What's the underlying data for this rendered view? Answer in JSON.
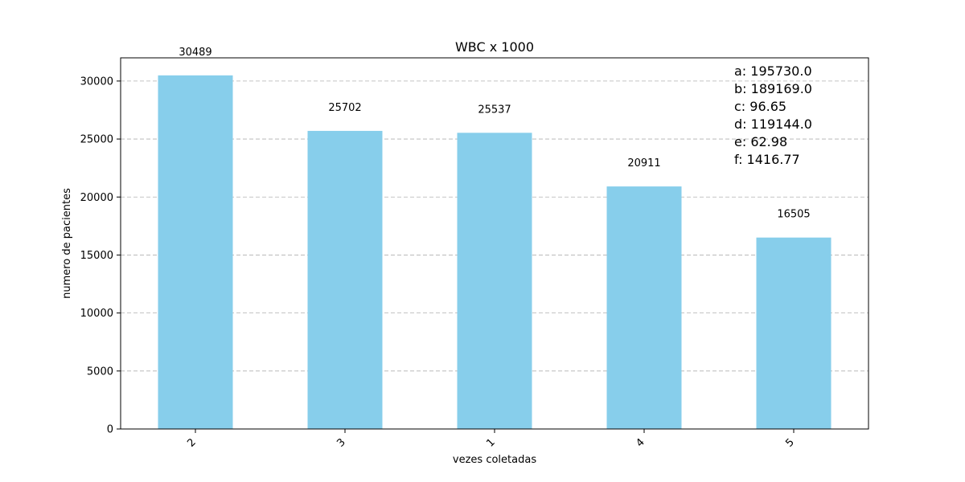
{
  "chart_data": {
    "type": "bar",
    "title": "WBC x 1000",
    "xlabel": "vezes coletadas",
    "ylabel": "numero de pacientes",
    "categories": [
      "2",
      "3",
      "1",
      "4",
      "5"
    ],
    "values": [
      30489,
      25702,
      25537,
      20911,
      16505
    ],
    "value_labels": [
      "30489",
      "25702",
      "25537",
      "20911",
      "16505"
    ],
    "ylim": [
      0,
      32000
    ],
    "yticks": [
      0,
      5000,
      10000,
      15000,
      20000,
      25000,
      30000
    ],
    "ytick_labels": [
      "0",
      "5000",
      "10000",
      "15000",
      "20000",
      "25000",
      "30000"
    ],
    "grid": "y-dashed",
    "bar_color": "#87CEEB",
    "x_tick_rotation_deg": 45,
    "annotations": [
      "a: 195730.0",
      "b: 189169.0",
      "c: 96.65",
      "d: 119144.0",
      "e: 62.98",
      "f: 1416.77"
    ]
  }
}
